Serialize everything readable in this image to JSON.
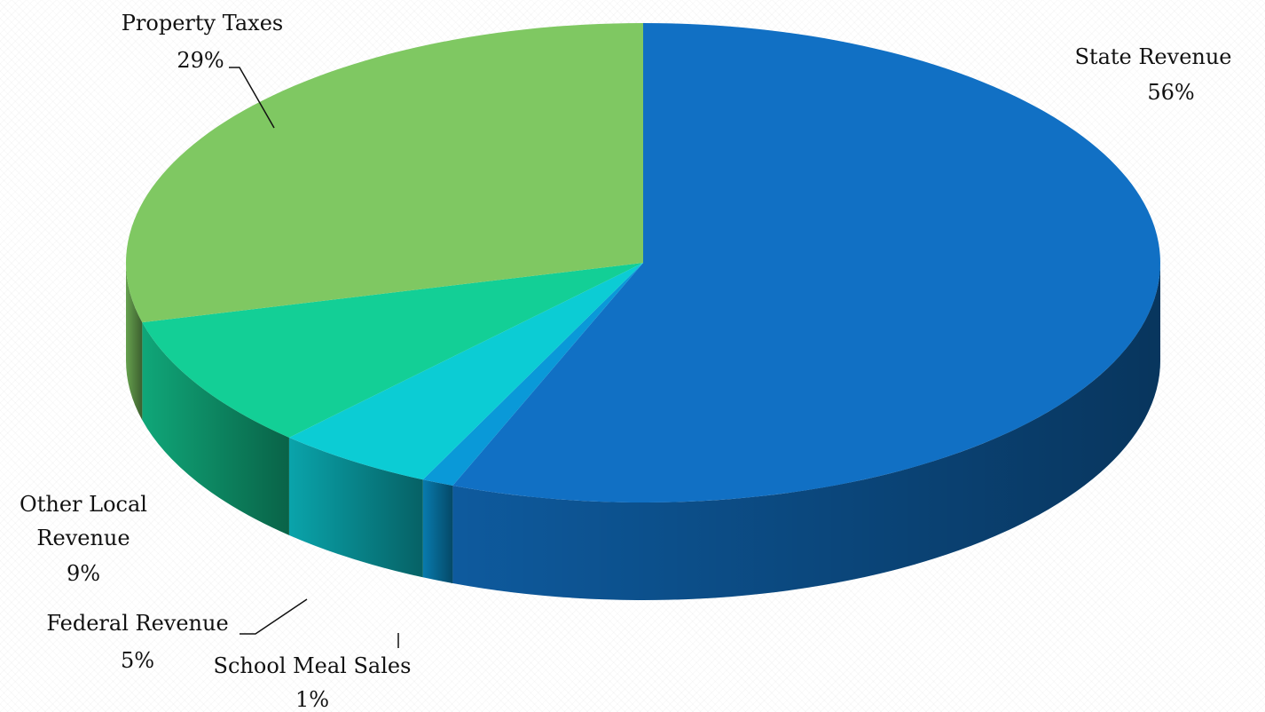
{
  "chart_data": {
    "type": "pie",
    "style": "3d",
    "title": "",
    "legend": "none",
    "slices": [
      {
        "label": "State Revenue",
        "value": 56,
        "value_label": "56%",
        "color": "#1170c4"
      },
      {
        "label": "School Meal Sales",
        "value": 1,
        "value_label": "1%",
        "color": "#0a99d8"
      },
      {
        "label": "Federal Revenue",
        "value": 5,
        "value_label": "5%",
        "color": "#0cccd4"
      },
      {
        "label": "Other Local Revenue",
        "label_lines": [
          "Other Local",
          "Revenue"
        ],
        "value": 9,
        "value_label": "9%",
        "color": "#13cf96"
      },
      {
        "label": "Property Taxes",
        "value": 29,
        "value_label": "29%",
        "color": "#7fc862"
      }
    ]
  }
}
